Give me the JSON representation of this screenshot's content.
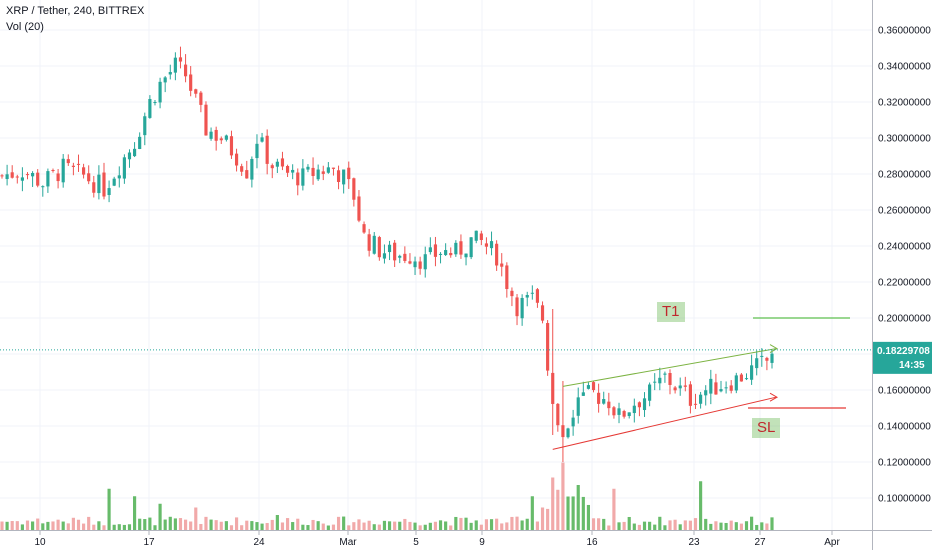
{
  "header": {
    "title": "XRP / Tether, 240, BITTREX",
    "volume_label": "Vol (20)"
  },
  "colors": {
    "up": "#26a69a",
    "down": "#ef5350",
    "vol_up": "#4caf50",
    "vol_down": "#ef9a9a",
    "target_line": "#5dbf4f",
    "stop_line": "#e53935",
    "price_line": "#26a69a",
    "annotation_text": "#c0272d"
  },
  "annotations": {
    "target_label": "T1",
    "stop_label": "SL",
    "target_price": 0.2,
    "stop_price": 0.15
  },
  "price_badge": {
    "price": "0.18229708",
    "countdown": "14:35",
    "value": 0.1823
  },
  "chart_data": {
    "type": "candlestick",
    "ylim": [
      0.07,
      0.37
    ],
    "yticks": [
      "0.10000000",
      "0.12000000",
      "0.14000000",
      "0.16000000",
      "0.18000000",
      "0.20000000",
      "0.22000000",
      "0.24000000",
      "0.26000000",
      "0.28000000",
      "0.30000000",
      "0.32000000",
      "0.34000000",
      "0.36000000"
    ],
    "x_labels": [
      "10",
      "17",
      "24",
      "Mar",
      "5",
      "9",
      "16",
      "23",
      "27",
      "Apr"
    ],
    "price_path": [
      [
        0,
        0.279
      ],
      [
        4,
        0.282
      ],
      [
        8,
        0.275
      ],
      [
        12,
        0.283
      ],
      [
        16,
        0.279
      ],
      [
        20,
        0.272
      ],
      [
        23,
        0.285
      ],
      [
        26,
        0.298
      ],
      [
        29,
        0.32
      ],
      [
        31,
        0.33
      ],
      [
        34,
        0.34
      ],
      [
        36,
        0.335
      ],
      [
        38,
        0.32
      ],
      [
        40,
        0.305
      ],
      [
        43,
        0.3
      ],
      [
        46,
        0.29
      ],
      [
        48,
        0.282
      ],
      [
        50,
        0.3
      ],
      [
        53,
        0.285
      ],
      [
        56,
        0.28
      ],
      [
        59,
        0.278
      ],
      [
        62,
        0.282
      ],
      [
        65,
        0.283
      ],
      [
        67,
        0.278
      ],
      [
        69,
        0.268
      ],
      [
        71,
        0.245
      ],
      [
        74,
        0.238
      ],
      [
        77,
        0.235
      ],
      [
        80,
        0.235
      ],
      [
        83,
        0.232
      ],
      [
        86,
        0.237
      ],
      [
        89,
        0.236
      ],
      [
        92,
        0.243
      ],
      [
        94,
        0.242
      ],
      [
        97,
        0.235
      ],
      [
        99,
        0.22
      ],
      [
        101,
        0.207
      ],
      [
        104,
        0.21
      ],
      [
        106,
        0.2
      ],
      [
        108,
        0.15
      ],
      [
        110,
        0.135
      ],
      [
        113,
        0.155
      ],
      [
        116,
        0.158
      ],
      [
        119,
        0.154
      ],
      [
        121,
        0.145
      ],
      [
        124,
        0.153
      ],
      [
        127,
        0.158
      ],
      [
        130,
        0.167
      ],
      [
        133,
        0.16
      ],
      [
        135,
        0.155
      ],
      [
        138,
        0.16
      ],
      [
        141,
        0.163
      ],
      [
        144,
        0.166
      ],
      [
        147,
        0.171
      ],
      [
        150,
        0.176
      ],
      [
        151,
        0.182
      ]
    ],
    "candles_total": 152,
    "volume_spikes": [
      [
        21,
        0.55
      ],
      [
        26,
        0.45
      ],
      [
        31,
        0.35
      ],
      [
        38,
        0.3
      ],
      [
        54,
        0.2
      ],
      [
        104,
        0.45
      ],
      [
        108,
        0.7
      ],
      [
        110,
        0.9
      ],
      [
        113,
        0.6
      ],
      [
        120,
        0.55
      ],
      [
        137,
        0.65
      ]
    ],
    "trend_lines": {
      "upper": [
        [
          110,
          0.162
        ],
        [
          151,
          0.183
        ]
      ],
      "lower": [
        [
          108,
          0.127
        ],
        [
          151,
          0.156
        ]
      ]
    }
  }
}
